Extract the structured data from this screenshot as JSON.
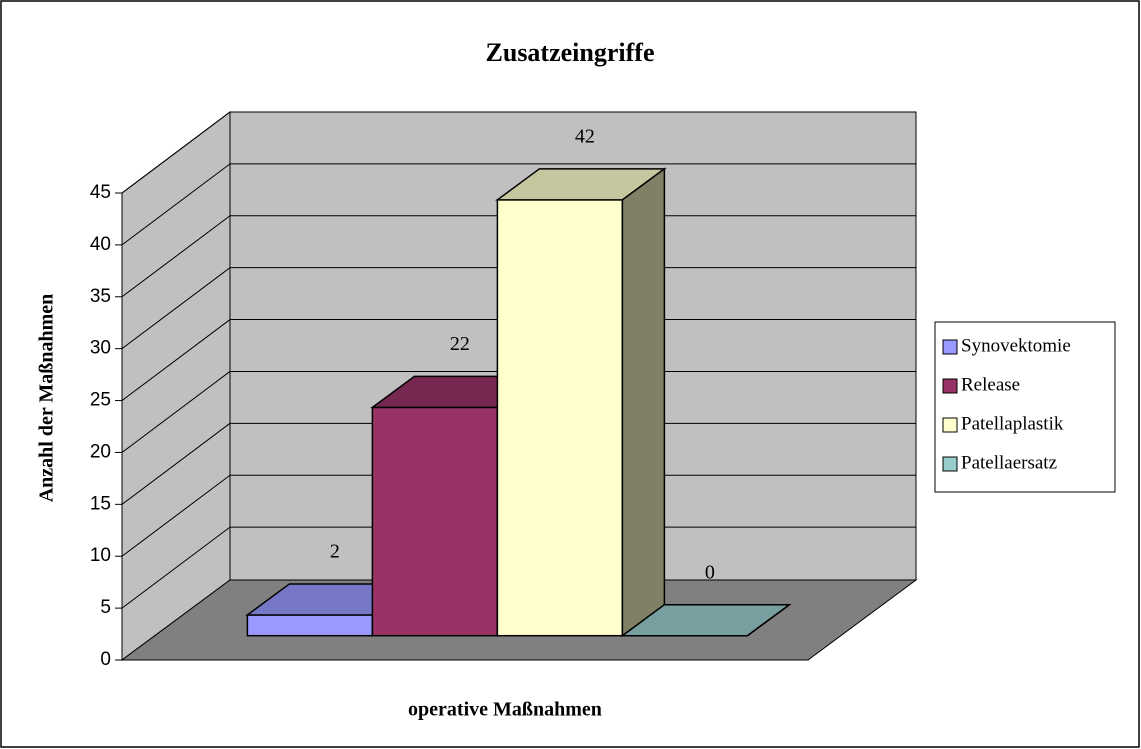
{
  "chart_data": {
    "type": "bar3d",
    "title": "Zusatzeingriffe",
    "x_label": "operative Maßnahmen",
    "y_label": "Anzahl der Maßnahmen",
    "categories": [
      null
    ],
    "series": [
      {
        "name": "Synovektomie",
        "color": "#9999ff",
        "values": [
          2
        ]
      },
      {
        "name": "Release",
        "color": "#993366",
        "values": [
          22
        ]
      },
      {
        "name": "Patellaplastik",
        "color": "#ffffcc",
        "values": [
          42
        ]
      },
      {
        "name": "Patellaersatz",
        "color": "#99cccc",
        "values": [
          0
        ]
      }
    ],
    "ylim": [
      0,
      45
    ],
    "yticks": [
      0,
      5,
      10,
      15,
      20,
      25,
      30,
      35,
      40,
      45
    ],
    "grid": true,
    "legend": "right"
  }
}
